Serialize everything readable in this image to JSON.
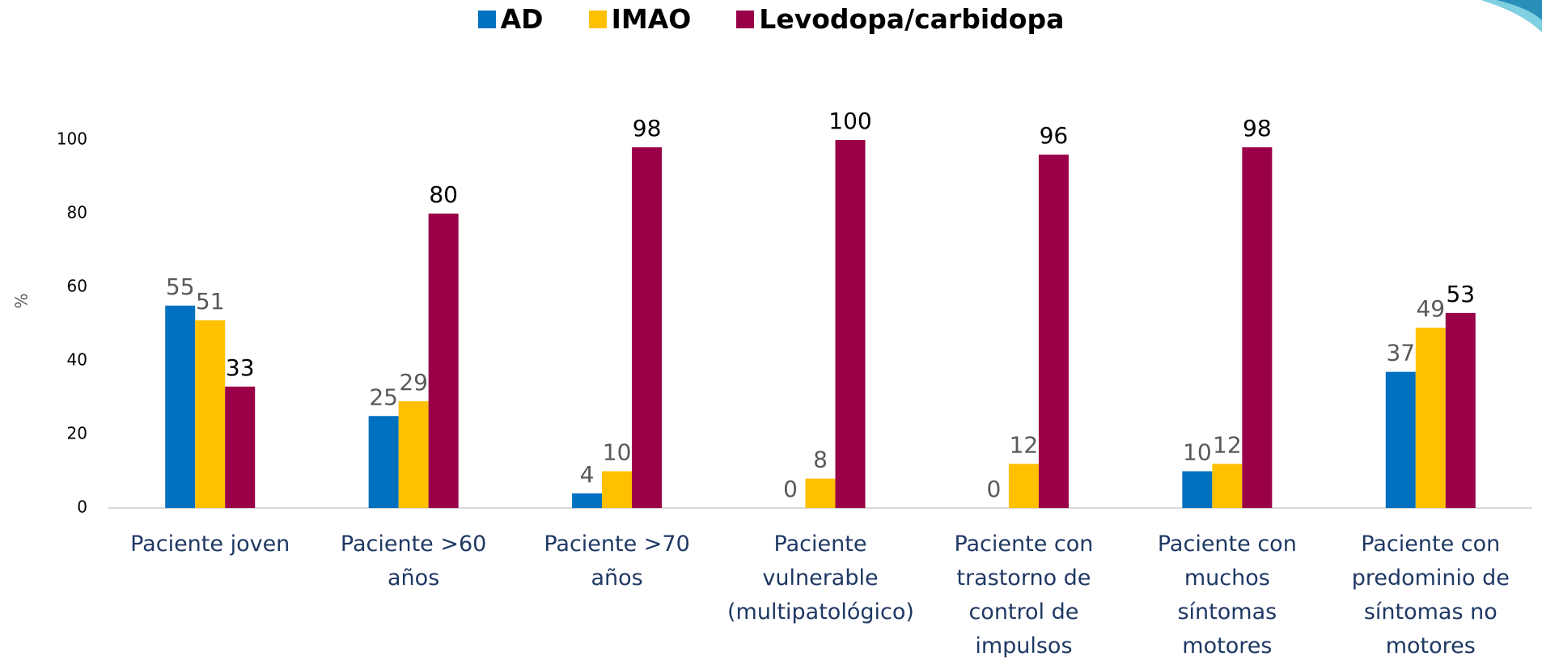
{
  "chart_data": {
    "type": "bar",
    "categories": [
      "Paciente joven",
      "Paciente >60 años",
      "Paciente >70 años",
      "Paciente vulnerable (multipatológico)",
      "Paciente con trastorno de control de impulsos",
      "Paciente con muchos síntomas motores",
      "Paciente con predominio de síntomas no motores"
    ],
    "series": [
      {
        "name": "AD",
        "color": "#0070c0",
        "values": [
          55,
          25,
          4,
          0,
          0,
          10,
          37
        ]
      },
      {
        "name": "IMAO",
        "color": "#ffc000",
        "values": [
          51,
          29,
          10,
          8,
          12,
          12,
          49
        ]
      },
      {
        "name": "Levodopa/carbidopa",
        "color": "#990047",
        "values": [
          33,
          80,
          98,
          100,
          96,
          98,
          53
        ]
      }
    ],
    "y_label": "%",
    "ylim": [
      0,
      100
    ],
    "yticks": [
      0,
      20,
      40,
      60,
      80,
      100
    ],
    "grid": false,
    "legend": "top"
  }
}
